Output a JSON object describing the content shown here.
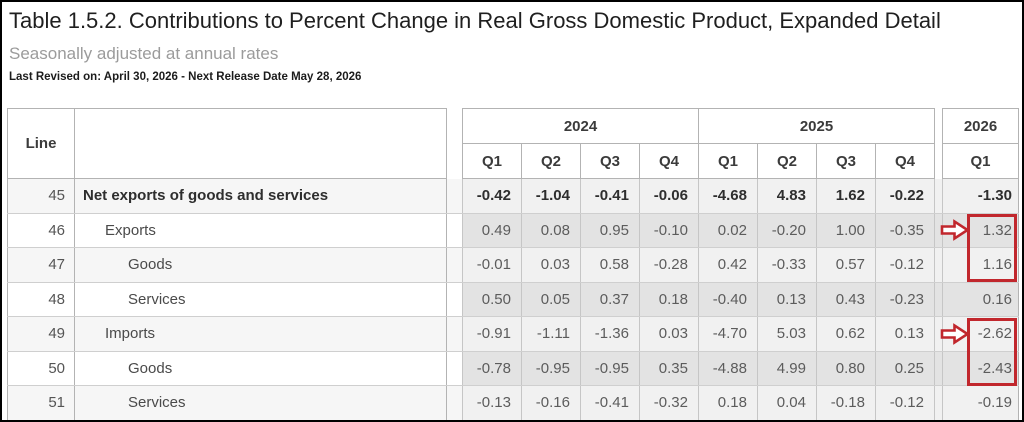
{
  "page": {
    "title": "Table 1.5.2. Contributions to Percent Change in Real Gross Domestic Product, Expanded Detail",
    "subtitle": "Seasonally adjusted at annual rates",
    "revision_note": "Last Revised on: April 30, 2026 - Next Release Date May 28, 2026"
  },
  "table": {
    "line_header": "Line",
    "year_groups": [
      {
        "year": "2024",
        "quarters": [
          "Q1",
          "Q2",
          "Q3",
          "Q4"
        ]
      },
      {
        "year": "2025",
        "quarters": [
          "Q1",
          "Q2",
          "Q3",
          "Q4"
        ]
      },
      {
        "year": "2026",
        "quarters": [
          "Q1"
        ]
      }
    ],
    "rows": [
      {
        "line": "45",
        "label": "Net exports of goods and services",
        "indent": 0,
        "bold": true,
        "values": [
          "-0.42",
          "-1.04",
          "-0.41",
          "-0.06",
          "-4.68",
          "4.83",
          "1.62",
          "-0.22",
          "-1.30"
        ]
      },
      {
        "line": "46",
        "label": "Exports",
        "indent": 1,
        "bold": false,
        "values": [
          "0.49",
          "0.08",
          "0.95",
          "-0.10",
          "0.02",
          "-0.20",
          "1.00",
          "-0.35",
          "1.32"
        ]
      },
      {
        "line": "47",
        "label": "Goods",
        "indent": 2,
        "bold": false,
        "values": [
          "-0.01",
          "0.03",
          "0.58",
          "-0.28",
          "0.42",
          "-0.33",
          "0.57",
          "-0.12",
          "1.16"
        ]
      },
      {
        "line": "48",
        "label": "Services",
        "indent": 2,
        "bold": false,
        "values": [
          "0.50",
          "0.05",
          "0.37",
          "0.18",
          "-0.40",
          "0.13",
          "0.43",
          "-0.23",
          "0.16"
        ]
      },
      {
        "line": "49",
        "label": "Imports",
        "indent": 1,
        "bold": false,
        "values": [
          "-0.91",
          "-1.11",
          "-1.36",
          "0.03",
          "-4.70",
          "5.03",
          "0.62",
          "0.13",
          "-2.62"
        ]
      },
      {
        "line": "50",
        "label": "Goods",
        "indent": 2,
        "bold": false,
        "values": [
          "-0.78",
          "-0.95",
          "-0.95",
          "0.35",
          "-4.88",
          "4.99",
          "0.80",
          "0.25",
          "-2.43"
        ]
      },
      {
        "line": "51",
        "label": "Services",
        "indent": 2,
        "bold": false,
        "values": [
          "-0.13",
          "-0.16",
          "-0.41",
          "-0.32",
          "0.18",
          "0.04",
          "-0.18",
          "-0.12",
          "-0.19"
        ]
      }
    ],
    "annotations": {
      "color": "#c1272d",
      "arrows": [
        {
          "row_line": "46",
          "points_to": "2026 Q1 value 1.32"
        },
        {
          "row_line": "49",
          "points_to": "2026 Q1 value -2.62"
        }
      ],
      "boxes": [
        {
          "row_lines": [
            "46",
            "47"
          ],
          "column": "2026 Q1",
          "values": [
            "1.32",
            "1.16"
          ]
        },
        {
          "row_lines": [
            "49",
            "50"
          ],
          "column": "2026 Q1",
          "values": [
            "-2.62",
            "-2.43"
          ]
        }
      ]
    }
  }
}
